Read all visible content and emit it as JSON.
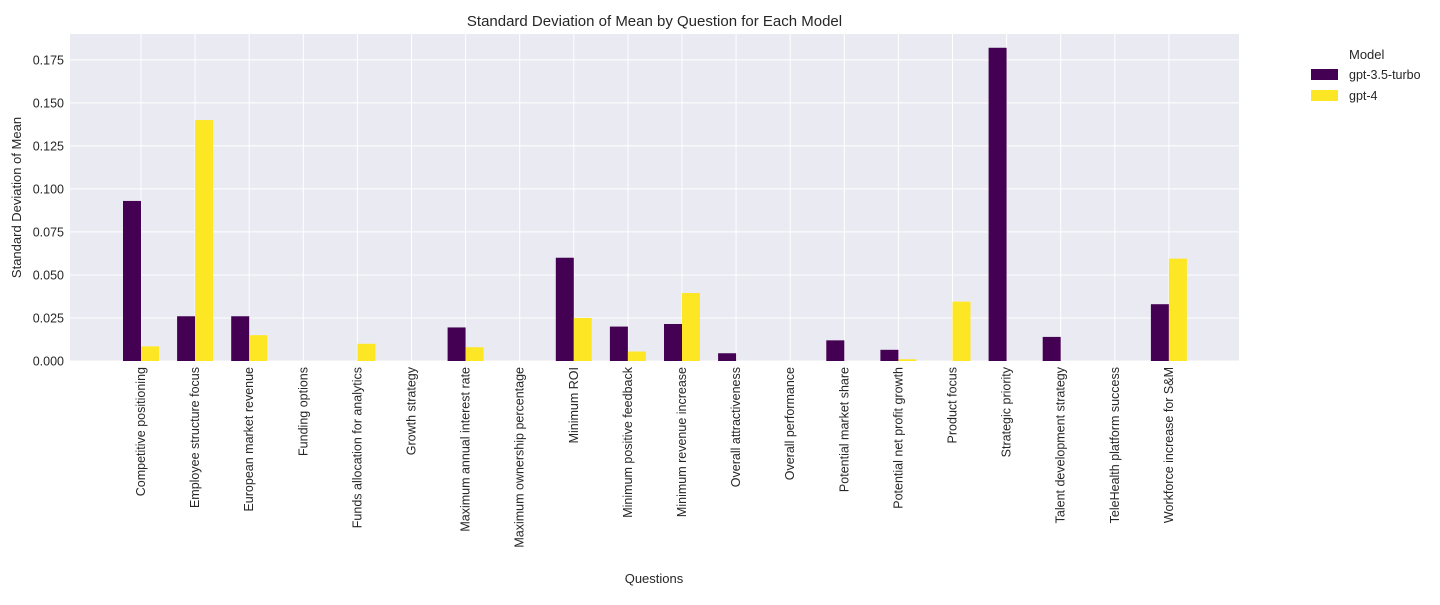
{
  "chart_data": {
    "type": "bar",
    "title": "Standard Deviation of Mean by Question for Each Model",
    "xlabel": "Questions",
    "ylabel": "Standard Deviation of Mean",
    "ylim": [
      0,
      0.19
    ],
    "yticks": [
      "0.000",
      "0.025",
      "0.050",
      "0.075",
      "0.100",
      "0.125",
      "0.150",
      "0.175"
    ],
    "grid": true,
    "legend": {
      "title": "Model",
      "placement": "outside-top-right"
    },
    "categories": [
      "Competitive positioning",
      "Employee structure focus",
      "European market revenue",
      "Funding options",
      "Funds allocation for analytics",
      "Growth strategy",
      "Maximum annual interest rate",
      "Maximum ownership percentage",
      "Minimum ROI",
      "Minimum positive feedback",
      "Minimum revenue increase",
      "Overall attractiveness",
      "Overall performance",
      "Potential market share",
      "Potential net profit growth",
      "Product focus",
      "Strategic priority",
      "Talent development strategy",
      "TeleHealth platform success",
      "Workforce increase for S&M"
    ],
    "series": [
      {
        "name": "gpt-3.5-turbo",
        "color": "#440154",
        "values": [
          0.093,
          0.026,
          0.026,
          0,
          0,
          0,
          0.0195,
          0,
          0.06,
          0.02,
          0.0215,
          0.0045,
          0,
          0.012,
          0.0065,
          0,
          0.182,
          0.014,
          0,
          0.033
        ]
      },
      {
        "name": "gpt-4",
        "color": "#fde725",
        "values": [
          0.0085,
          0.14,
          0.015,
          0,
          0.01,
          0,
          0.008,
          0,
          0.025,
          0.0055,
          0.0395,
          0,
          0,
          0,
          0.001,
          0.0345,
          0,
          0,
          0,
          0.0595
        ]
      }
    ]
  }
}
